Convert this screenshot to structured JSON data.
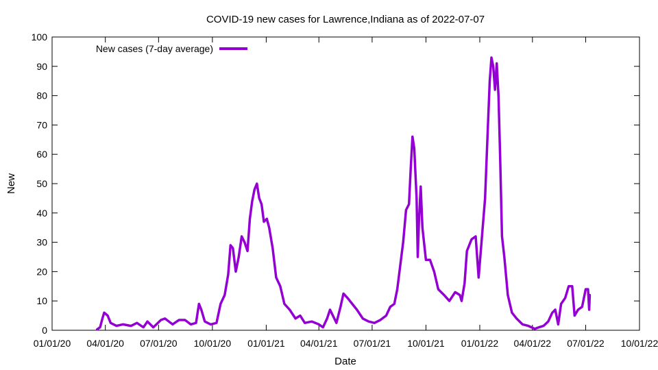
{
  "chart_data": {
    "type": "line",
    "title": "COVID-19 new cases for Lawrence,Indiana as of 2022-07-07",
    "xlabel": "Date",
    "ylabel": "New",
    "xlim": [
      "2020-01-01",
      "2022-10-01"
    ],
    "ylim": [
      0,
      100
    ],
    "x_ticks": [
      "01/01/20",
      "04/01/20",
      "07/01/20",
      "10/01/20",
      "01/01/21",
      "04/01/21",
      "07/01/21",
      "10/01/21",
      "01/01/22",
      "04/01/22",
      "07/01/22",
      "10/01/22"
    ],
    "y_ticks": [
      0,
      10,
      20,
      30,
      40,
      50,
      60,
      70,
      80,
      90,
      100
    ],
    "legend_position": "top-left",
    "grid": false,
    "series": [
      {
        "name": "New cases (7-day average)",
        "color": "#9400d3",
        "points": [
          [
            "2020-03-18",
            0.3
          ],
          [
            "2020-03-23",
            1.0
          ],
          [
            "2020-03-27",
            4.0
          ],
          [
            "2020-03-30",
            6.0
          ],
          [
            "2020-04-05",
            5.0
          ],
          [
            "2020-04-10",
            2.5
          ],
          [
            "2020-04-20",
            1.5
          ],
          [
            "2020-05-01",
            2.0
          ],
          [
            "2020-05-15",
            1.5
          ],
          [
            "2020-05-25",
            2.5
          ],
          [
            "2020-06-05",
            1.0
          ],
          [
            "2020-06-12",
            3.0
          ],
          [
            "2020-06-22",
            1.0
          ],
          [
            "2020-07-05",
            3.5
          ],
          [
            "2020-07-12",
            4.0
          ],
          [
            "2020-07-25",
            2.0
          ],
          [
            "2020-08-05",
            3.5
          ],
          [
            "2020-08-15",
            3.5
          ],
          [
            "2020-08-25",
            2.0
          ],
          [
            "2020-09-03",
            2.5
          ],
          [
            "2020-09-08",
            9.0
          ],
          [
            "2020-09-12",
            7.0
          ],
          [
            "2020-09-18",
            3.0
          ],
          [
            "2020-09-28",
            2.0
          ],
          [
            "2020-10-08",
            2.5
          ],
          [
            "2020-10-15",
            9.0
          ],
          [
            "2020-10-22",
            12.0
          ],
          [
            "2020-10-28",
            19.0
          ],
          [
            "2020-11-01",
            29.0
          ],
          [
            "2020-11-05",
            28.0
          ],
          [
            "2020-11-10",
            20.0
          ],
          [
            "2020-11-15",
            25.0
          ],
          [
            "2020-11-20",
            32.0
          ],
          [
            "2020-11-25",
            30.0
          ],
          [
            "2020-11-30",
            27.0
          ],
          [
            "2020-12-04",
            38.0
          ],
          [
            "2020-12-08",
            44.0
          ],
          [
            "2020-12-12",
            48.0
          ],
          [
            "2020-12-16",
            50.0
          ],
          [
            "2020-12-20",
            45.0
          ],
          [
            "2020-12-24",
            43.0
          ],
          [
            "2020-12-28",
            37.0
          ],
          [
            "2021-01-02",
            38.0
          ],
          [
            "2021-01-06",
            35.0
          ],
          [
            "2021-01-12",
            28.0
          ],
          [
            "2021-01-18",
            18.0
          ],
          [
            "2021-01-25",
            15.0
          ],
          [
            "2021-02-01",
            9.0
          ],
          [
            "2021-02-10",
            7.0
          ],
          [
            "2021-02-20",
            4.0
          ],
          [
            "2021-02-28",
            5.0
          ],
          [
            "2021-03-08",
            2.5
          ],
          [
            "2021-03-20",
            3.0
          ],
          [
            "2021-04-01",
            2.0
          ],
          [
            "2021-04-08",
            1.0
          ],
          [
            "2021-04-15",
            4.0
          ],
          [
            "2021-04-20",
            7.0
          ],
          [
            "2021-04-25",
            5.0
          ],
          [
            "2021-05-01",
            2.5
          ],
          [
            "2021-05-08",
            8.0
          ],
          [
            "2021-05-13",
            12.5
          ],
          [
            "2021-05-20",
            11.0
          ],
          [
            "2021-05-28",
            9.0
          ],
          [
            "2021-06-05",
            7.0
          ],
          [
            "2021-06-15",
            4.0
          ],
          [
            "2021-06-25",
            3.0
          ],
          [
            "2021-07-05",
            2.5
          ],
          [
            "2021-07-15",
            3.5
          ],
          [
            "2021-07-25",
            5.0
          ],
          [
            "2021-08-01",
            8.0
          ],
          [
            "2021-08-08",
            9.0
          ],
          [
            "2021-08-13",
            14.0
          ],
          [
            "2021-08-18",
            22.0
          ],
          [
            "2021-08-23",
            30.0
          ],
          [
            "2021-08-28",
            41.0
          ],
          [
            "2021-09-02",
            43.0
          ],
          [
            "2021-09-05",
            55.0
          ],
          [
            "2021-09-08",
            66.0
          ],
          [
            "2021-09-11",
            62.0
          ],
          [
            "2021-09-15",
            45.0
          ],
          [
            "2021-09-17",
            25.0
          ],
          [
            "2021-09-19",
            37.0
          ],
          [
            "2021-09-22",
            49.0
          ],
          [
            "2021-09-25",
            35.0
          ],
          [
            "2021-10-01",
            24.0
          ],
          [
            "2021-10-08",
            24.0
          ],
          [
            "2021-10-15",
            20.0
          ],
          [
            "2021-10-22",
            14.0
          ],
          [
            "2021-11-01",
            12.0
          ],
          [
            "2021-11-10",
            10.0
          ],
          [
            "2021-11-20",
            13.0
          ],
          [
            "2021-11-28",
            12.0
          ],
          [
            "2021-12-01",
            10.0
          ],
          [
            "2021-12-06",
            16.0
          ],
          [
            "2021-12-10",
            27.0
          ],
          [
            "2021-12-18",
            31.0
          ],
          [
            "2021-12-25",
            32.0
          ],
          [
            "2021-12-30",
            18.0
          ],
          [
            "2022-01-04",
            30.0
          ],
          [
            "2022-01-10",
            45.0
          ],
          [
            "2022-01-15",
            70.0
          ],
          [
            "2022-01-18",
            85.0
          ],
          [
            "2022-01-21",
            93.0
          ],
          [
            "2022-01-24",
            90.0
          ],
          [
            "2022-01-27",
            82.0
          ],
          [
            "2022-01-30",
            91.0
          ],
          [
            "2022-02-02",
            80.0
          ],
          [
            "2022-02-05",
            58.0
          ],
          [
            "2022-02-08",
            32.0
          ],
          [
            "2022-02-12",
            25.0
          ],
          [
            "2022-02-18",
            12.0
          ],
          [
            "2022-02-25",
            6.0
          ],
          [
            "2022-03-05",
            4.0
          ],
          [
            "2022-03-15",
            2.0
          ],
          [
            "2022-03-25",
            1.5
          ],
          [
            "2022-04-05",
            0.5
          ],
          [
            "2022-04-12",
            1.0
          ],
          [
            "2022-04-20",
            1.5
          ],
          [
            "2022-04-28",
            3.0
          ],
          [
            "2022-05-05",
            6.0
          ],
          [
            "2022-05-10",
            7.0
          ],
          [
            "2022-05-15",
            2.0
          ],
          [
            "2022-05-20",
            9.0
          ],
          [
            "2022-05-27",
            11.0
          ],
          [
            "2022-06-02",
            15.0
          ],
          [
            "2022-06-08",
            15.0
          ],
          [
            "2022-06-12",
            5.0
          ],
          [
            "2022-06-18",
            7.0
          ],
          [
            "2022-06-25",
            8.0
          ],
          [
            "2022-07-01",
            14.0
          ],
          [
            "2022-07-05",
            14.0
          ],
          [
            "2022-07-07",
            7.0
          ],
          [
            "2022-07-08",
            12.0
          ]
        ]
      }
    ]
  }
}
